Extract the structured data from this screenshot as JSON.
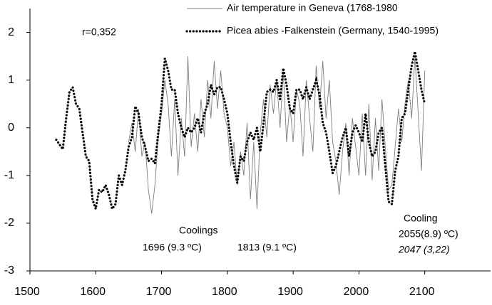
{
  "chart_data": {
    "type": "line",
    "xlim": [
      1500,
      2200
    ],
    "xticks": [
      1500,
      1600,
      1700,
      1800,
      1900,
      2000,
      2100
    ],
    "ylim": [
      -3,
      2.5
    ],
    "yticks": [
      -3,
      -2,
      -1,
      0,
      1,
      2
    ],
    "series": [
      {
        "name": "Air temperature in Geneva (1768-1980",
        "color": "#7f7f7f",
        "style": "solid",
        "x": [
          1650,
          1655,
          1660,
          1665,
          1670,
          1675,
          1680,
          1685,
          1690,
          1695,
          1700,
          1705,
          1710,
          1715,
          1720,
          1725,
          1730,
          1735,
          1740,
          1745,
          1750,
          1755,
          1760,
          1765,
          1770,
          1775,
          1780,
          1785,
          1790,
          1795,
          1800,
          1805,
          1810,
          1815,
          1820,
          1825,
          1830,
          1835,
          1840,
          1845,
          1850,
          1855,
          1860,
          1865,
          1870,
          1875,
          1880,
          1885,
          1890,
          1895,
          1900,
          1905,
          1910,
          1915,
          1920,
          1925,
          1930,
          1935,
          1940,
          1945,
          1950,
          1955,
          1960,
          1965,
          1970,
          1975,
          1980,
          1985,
          1990,
          1995,
          2000,
          2005,
          2010,
          2015,
          2020,
          2025,
          2030,
          2035,
          2040,
          2045,
          2050,
          2055,
          2060,
          2065,
          2070,
          2075,
          2080,
          2085,
          2090,
          2095,
          2100
        ],
        "values": [
          -0.3,
          0.1,
          -0.5,
          0.4,
          -0.6,
          -0.3,
          -1.3,
          -1.8,
          -1.2,
          -0.2,
          0.3,
          1.0,
          0.5,
          -0.6,
          0.6,
          -1.0,
          0.2,
          -0.6,
          1.5,
          -0.4,
          0.3,
          -0.5,
          0.6,
          -0.2,
          1.0,
          0.2,
          1.4,
          0.4,
          1.2,
          0.3,
          0.0,
          -0.8,
          -0.3,
          -1.2,
          -0.5,
          -1.0,
          0.1,
          -1.5,
          -0.3,
          -1.7,
          -0.1,
          0.6,
          -0.2,
          0.9,
          0.3,
          1.0,
          0.0,
          1.2,
          -0.3,
          0.5,
          -0.3,
          0.8,
          0.5,
          -0.6,
          1.0,
          0.2,
          -0.5,
          1.3,
          0.4,
          1.4,
          0.2,
          1.0,
          -0.3,
          -0.7,
          -1.4,
          -0.5,
          0.1,
          -1.0,
          0.2,
          -0.4,
          -1.0,
          0.3,
          -1.0,
          0.5,
          -1.1,
          0.2,
          -0.9,
          0.6,
          -0.4,
          -1.3,
          -1.2,
          -0.4,
          0.4,
          -0.3,
          0.5,
          1.0,
          0.2,
          1.5,
          0.3,
          -0.9,
          1.2
        ]
      },
      {
        "name": "Picea abies -Falkenstein (Germany, 1540-1995)",
        "color": "#000000",
        "style": "dotted",
        "x": [
          1540,
          1545,
          1550,
          1555,
          1560,
          1565,
          1570,
          1575,
          1580,
          1585,
          1590,
          1595,
          1600,
          1605,
          1610,
          1615,
          1620,
          1625,
          1630,
          1635,
          1640,
          1645,
          1650,
          1655,
          1660,
          1665,
          1670,
          1675,
          1680,
          1685,
          1690,
          1695,
          1700,
          1705,
          1710,
          1715,
          1720,
          1725,
          1730,
          1735,
          1740,
          1745,
          1750,
          1755,
          1760,
          1765,
          1770,
          1775,
          1780,
          1785,
          1790,
          1795,
          1800,
          1805,
          1810,
          1815,
          1820,
          1825,
          1830,
          1835,
          1840,
          1845,
          1850,
          1855,
          1860,
          1865,
          1870,
          1875,
          1880,
          1885,
          1890,
          1895,
          1900,
          1905,
          1910,
          1915,
          1920,
          1925,
          1930,
          1935,
          1940,
          1945,
          1950,
          1955,
          1960,
          1965,
          1970,
          1975,
          1980,
          1985,
          1990,
          1995,
          2000,
          2005,
          2010,
          2015,
          2020,
          2025,
          2030,
          2035,
          2040,
          2045,
          2050,
          2055,
          2060,
          2065,
          2070,
          2075,
          2080,
          2085,
          2090,
          2095,
          2100
        ],
        "values": [
          -0.25,
          -0.35,
          -0.45,
          0.2,
          0.75,
          0.85,
          0.5,
          0.4,
          -0.1,
          -0.6,
          -0.7,
          -1.5,
          -1.7,
          -1.3,
          -1.35,
          -1.2,
          -1.4,
          -1.7,
          -1.6,
          -1.0,
          -1.2,
          -0.9,
          -0.4,
          -0.2,
          0.45,
          0.3,
          -0.2,
          -0.4,
          -0.7,
          -0.65,
          -0.75,
          -0.1,
          0.5,
          1.45,
          1.2,
          0.8,
          0.8,
          0.3,
          0.0,
          -0.2,
          0.0,
          -0.1,
          0.0,
          0.2,
          -0.1,
          0.3,
          0.5,
          0.9,
          0.7,
          0.85,
          0.85,
          0.6,
          0.3,
          -0.3,
          -0.8,
          -1.15,
          -0.6,
          -0.7,
          -0.3,
          -0.1,
          -0.25,
          0.0,
          -0.5,
          0.1,
          0.75,
          0.8,
          0.75,
          1.0,
          0.6,
          1.25,
          0.9,
          0.4,
          0.3,
          0.8,
          0.8,
          0.6,
          0.85,
          0.6,
          0.8,
          1.0,
          0.7,
          0.1,
          -0.1,
          -0.5,
          -0.95,
          -0.8,
          -0.5,
          -0.2,
          0.0,
          -0.6,
          -0.1,
          0.05,
          -0.1,
          -0.3,
          0.3,
          -0.3,
          -0.6,
          -0.5,
          -0.1,
          0.0,
          -0.8,
          -1.55,
          -1.6,
          -0.9,
          -0.6,
          0.2,
          0.3,
          0.8,
          1.3,
          1.6,
          1.2,
          0.8,
          0.5
        ]
      }
    ],
    "annotations": [
      "r=0,352",
      "Coolings",
      "1696 (9.3 ºC)",
      "1813 (9.1 ºC)",
      "Cooling",
      "2055(8.9) ºC)",
      "2047 (3,22)"
    ]
  }
}
